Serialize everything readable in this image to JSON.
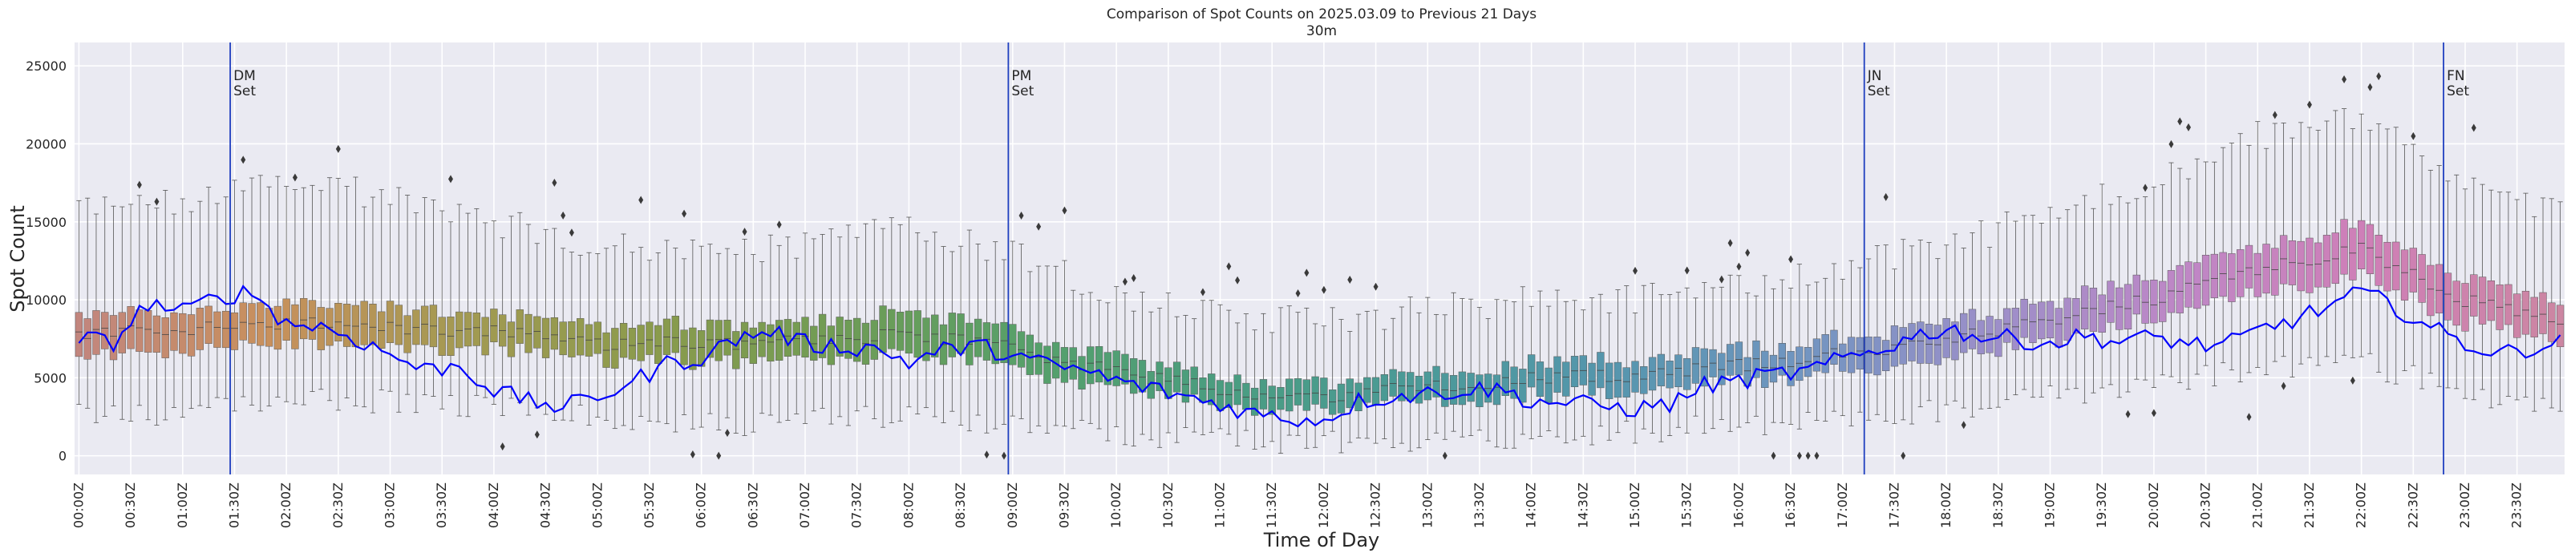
{
  "chart_data": {
    "type": "box",
    "title": "Comparison of Spot Counts on 2025.03.09 to Previous 21 Days",
    "subtitle": "30m",
    "xlabel": "Time of Day",
    "ylabel": "Spot Count",
    "ylim": [
      -1200,
      26500
    ],
    "yticks": [
      0,
      5000,
      10000,
      15000,
      20000,
      25000
    ],
    "xticks": [
      "00:00Z",
      "00:30Z",
      "01:00Z",
      "01:30Z",
      "02:00Z",
      "02:30Z",
      "03:00Z",
      "03:30Z",
      "04:00Z",
      "04:30Z",
      "05:00Z",
      "05:30Z",
      "06:00Z",
      "06:30Z",
      "07:00Z",
      "07:30Z",
      "08:00Z",
      "08:30Z",
      "09:00Z",
      "09:30Z",
      "10:00Z",
      "10:30Z",
      "11:00Z",
      "11:30Z",
      "12:00Z",
      "12:30Z",
      "13:00Z",
      "13:30Z",
      "14:00Z",
      "14:30Z",
      "15:00Z",
      "15:30Z",
      "16:00Z",
      "16:30Z",
      "17:00Z",
      "17:30Z",
      "18:00Z",
      "18:30Z",
      "19:00Z",
      "19:30Z",
      "20:00Z",
      "20:30Z",
      "21:00Z",
      "21:30Z",
      "22:00Z",
      "22:30Z",
      "23:00Z",
      "23:30Z"
    ],
    "slots_per_day": 288,
    "slot_minutes": 5,
    "box_anchor_points": [
      {
        "slot": 0,
        "median": 7800,
        "q1": 6300,
        "q3": 9000,
        "whisker_low": 2500,
        "whisker_high": 16000
      },
      {
        "slot": 12,
        "median": 8000,
        "q1": 6600,
        "q3": 9100,
        "whisker_low": 2800,
        "whisker_high": 16500
      },
      {
        "slot": 24,
        "median": 8500,
        "q1": 7200,
        "q3": 9800,
        "whisker_low": 3500,
        "whisker_high": 18000
      },
      {
        "slot": 36,
        "median": 8300,
        "q1": 7000,
        "q3": 9600,
        "whisker_low": 3500,
        "whisker_high": 16500
      },
      {
        "slot": 48,
        "median": 7900,
        "q1": 6800,
        "q3": 9000,
        "whisker_low": 3000,
        "whisker_high": 15000
      },
      {
        "slot": 60,
        "median": 7200,
        "q1": 6200,
        "q3": 8400,
        "whisker_low": 2500,
        "whisker_high": 13500
      },
      {
        "slot": 72,
        "median": 7200,
        "q1": 6000,
        "q3": 8400,
        "whisker_low": 2000,
        "whisker_high": 13000
      },
      {
        "slot": 84,
        "median": 7400,
        "q1": 6200,
        "q3": 8600,
        "whisker_low": 2200,
        "whisker_high": 13500
      },
      {
        "slot": 96,
        "median": 7800,
        "q1": 6500,
        "q3": 9200,
        "whisker_low": 2500,
        "whisker_high": 14500
      },
      {
        "slot": 108,
        "median": 6900,
        "q1": 5600,
        "q3": 8000,
        "whisker_low": 2000,
        "whisker_high": 13000
      },
      {
        "slot": 120,
        "median": 5400,
        "q1": 4300,
        "q3": 6400,
        "whisker_low": 1500,
        "whisker_high": 10500
      },
      {
        "slot": 132,
        "median": 4200,
        "q1": 3300,
        "q3": 5000,
        "whisker_low": 1000,
        "whisker_high": 9000
      },
      {
        "slot": 144,
        "median": 3800,
        "q1": 2900,
        "q3": 4700,
        "whisker_low": 800,
        "whisker_high": 8500
      },
      {
        "slot": 156,
        "median": 4500,
        "q1": 3500,
        "q3": 5400,
        "whisker_low": 1000,
        "whisker_high": 9500
      },
      {
        "slot": 168,
        "median": 4900,
        "q1": 3800,
        "q3": 5900,
        "whisker_low": 1200,
        "whisker_high": 10000
      },
      {
        "slot": 180,
        "median": 5200,
        "q1": 4200,
        "q3": 6200,
        "whisker_low": 1500,
        "whisker_high": 10000
      },
      {
        "slot": 192,
        "median": 5800,
        "q1": 4700,
        "q3": 6800,
        "whisker_low": 2000,
        "whisker_high": 11000
      },
      {
        "slot": 204,
        "median": 6500,
        "q1": 5400,
        "q3": 7500,
        "whisker_low": 2500,
        "whisker_high": 12000
      },
      {
        "slot": 216,
        "median": 7300,
        "q1": 6000,
        "q3": 8500,
        "whisker_low": 3000,
        "whisker_high": 13500
      },
      {
        "slot": 228,
        "median": 8800,
        "q1": 7500,
        "q3": 9900,
        "whisker_low": 4000,
        "whisker_high": 15500
      },
      {
        "slot": 240,
        "median": 10000,
        "q1": 8700,
        "q3": 11500,
        "whisker_low": 4500,
        "whisker_high": 17500
      },
      {
        "slot": 252,
        "median": 12000,
        "q1": 10500,
        "q3": 13500,
        "whisker_low": 5500,
        "whisker_high": 20500
      },
      {
        "slot": 264,
        "median": 13200,
        "q1": 11500,
        "q3": 14800,
        "whisker_low": 6000,
        "whisker_high": 21500
      },
      {
        "slot": 276,
        "median": 10000,
        "q1": 8500,
        "q3": 11500,
        "whisker_low": 4000,
        "whisker_high": 17500
      },
      {
        "slot": 287,
        "median": 8500,
        "q1": 7200,
        "q3": 9800,
        "whisker_low": 3000,
        "whisker_high": 15500
      }
    ],
    "series": [
      {
        "name": "2025.03.09",
        "color": "#0000ff",
        "points": [
          {
            "slot": 0,
            "value": 7500
          },
          {
            "slot": 4,
            "value": 7300
          },
          {
            "slot": 8,
            "value": 9800
          },
          {
            "slot": 12,
            "value": 9200
          },
          {
            "slot": 16,
            "value": 10200
          },
          {
            "slot": 20,
            "value": 10500
          },
          {
            "slot": 24,
            "value": 8500
          },
          {
            "slot": 28,
            "value": 8300
          },
          {
            "slot": 32,
            "value": 7500
          },
          {
            "slot": 36,
            "value": 6500
          },
          {
            "slot": 40,
            "value": 5500
          },
          {
            "slot": 44,
            "value": 5800
          },
          {
            "slot": 48,
            "value": 4200
          },
          {
            "slot": 52,
            "value": 3500
          },
          {
            "slot": 56,
            "value": 3100
          },
          {
            "slot": 60,
            "value": 3800
          },
          {
            "slot": 64,
            "value": 4700
          },
          {
            "slot": 68,
            "value": 5900
          },
          {
            "slot": 72,
            "value": 6300
          },
          {
            "slot": 76,
            "value": 7500
          },
          {
            "slot": 80,
            "value": 8000
          },
          {
            "slot": 84,
            "value": 7200
          },
          {
            "slot": 88,
            "value": 7000
          },
          {
            "slot": 92,
            "value": 6900
          },
          {
            "slot": 96,
            "value": 6000
          },
          {
            "slot": 100,
            "value": 6800
          },
          {
            "slot": 104,
            "value": 7000
          },
          {
            "slot": 108,
            "value": 6500
          },
          {
            "slot": 112,
            "value": 5800
          },
          {
            "slot": 116,
            "value": 5500
          },
          {
            "slot": 120,
            "value": 4800
          },
          {
            "slot": 124,
            "value": 4300
          },
          {
            "slot": 128,
            "value": 3800
          },
          {
            "slot": 132,
            "value": 3300
          },
          {
            "slot": 136,
            "value": 2700
          },
          {
            "slot": 140,
            "value": 2400
          },
          {
            "slot": 144,
            "value": 2300
          },
          {
            "slot": 148,
            "value": 3500
          },
          {
            "slot": 152,
            "value": 3800
          },
          {
            "slot": 156,
            "value": 4000
          },
          {
            "slot": 160,
            "value": 4200
          },
          {
            "slot": 164,
            "value": 4300
          },
          {
            "slot": 168,
            "value": 3500
          },
          {
            "slot": 172,
            "value": 3400
          },
          {
            "slot": 176,
            "value": 3200
          },
          {
            "slot": 180,
            "value": 3000
          },
          {
            "slot": 184,
            "value": 3300
          },
          {
            "slot": 188,
            "value": 4500
          },
          {
            "slot": 192,
            "value": 4800
          },
          {
            "slot": 196,
            "value": 5200
          },
          {
            "slot": 200,
            "value": 5400
          },
          {
            "slot": 204,
            "value": 6200
          },
          {
            "slot": 208,
            "value": 6800
          },
          {
            "slot": 212,
            "value": 7600
          },
          {
            "slot": 216,
            "value": 8200
          },
          {
            "slot": 220,
            "value": 7600
          },
          {
            "slot": 224,
            "value": 7500
          },
          {
            "slot": 228,
            "value": 7200
          },
          {
            "slot": 232,
            "value": 7700
          },
          {
            "slot": 236,
            "value": 7300
          },
          {
            "slot": 240,
            "value": 7600
          },
          {
            "slot": 244,
            "value": 7200
          },
          {
            "slot": 248,
            "value": 7000
          },
          {
            "slot": 252,
            "value": 8000
          },
          {
            "slot": 256,
            "value": 8700
          },
          {
            "slot": 260,
            "value": 9500
          },
          {
            "slot": 264,
            "value": 10500
          },
          {
            "slot": 268,
            "value": 9500
          },
          {
            "slot": 272,
            "value": 8200
          },
          {
            "slot": 276,
            "value": 7200
          },
          {
            "slot": 280,
            "value": 6500
          },
          {
            "slot": 284,
            "value": 7000
          },
          {
            "slot": 287,
            "value": 7200
          }
        ]
      }
    ],
    "reference_lines": [
      {
        "slot": 18,
        "label_line1": "DM",
        "label_line2": "Set",
        "color": "#1f3fbf"
      },
      {
        "slot": 108,
        "label_line1": "PM",
        "label_line2": "Set",
        "color": "#1f3fbf"
      },
      {
        "slot": 207,
        "label_line1": "JN",
        "label_line2": "Set",
        "color": "#1f3fbf"
      },
      {
        "slot": 274,
        "label_line1": "FN",
        "label_line2": "Set",
        "color": "#1f3fbf"
      }
    ],
    "box_palette": [
      "#c2867e",
      "#c8905c",
      "#a39a52",
      "#8b9b4c",
      "#6f9c55",
      "#56a06a",
      "#4a9d80",
      "#4b9a98",
      "#5596ad",
      "#7095c0",
      "#9b8fc9",
      "#be87c6",
      "#cf7fb7",
      "#cc86a2"
    ],
    "grid": true,
    "background": "#eaeaf2"
  }
}
